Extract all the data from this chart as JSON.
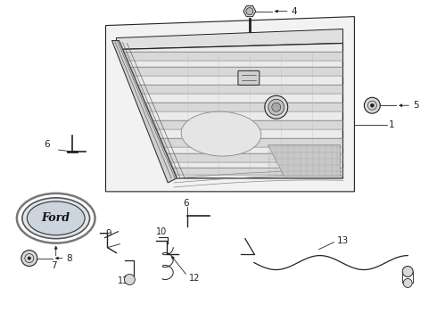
{
  "background_color": "#ffffff",
  "line_color": "#222222",
  "light_fill": "#f5f5f5",
  "mid_fill": "#e8e8e8",
  "dark_fill": "#cccccc",
  "figsize": [
    4.9,
    3.6
  ],
  "dpi": 100
}
